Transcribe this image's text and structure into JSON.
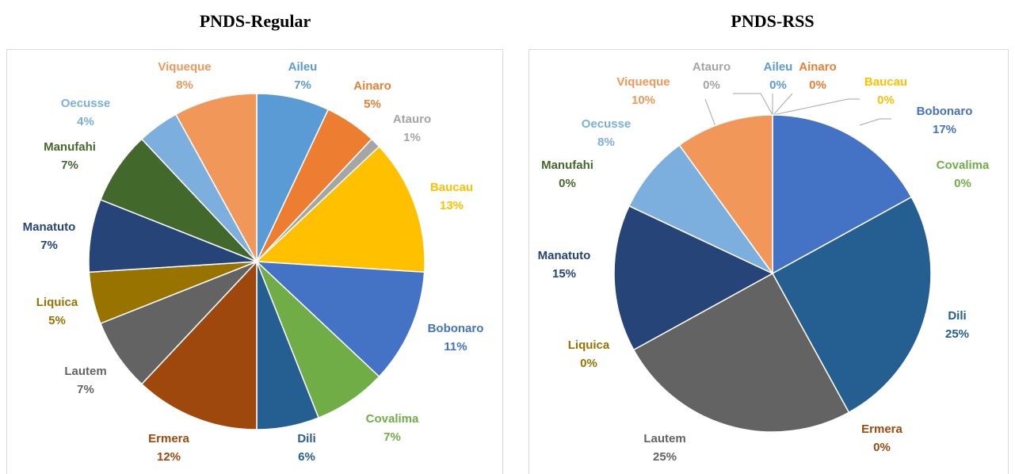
{
  "chart_data": [
    {
      "type": "pie",
      "title": "PNDS-Regular",
      "categories": [
        "Aileu",
        "Ainaro",
        "Atauro",
        "Baucau",
        "Bobonaro",
        "Covalima",
        "Dili",
        "Ermera",
        "Lautem",
        "Liquica",
        "Manatuto",
        "Manufahi",
        "Oecusse",
        "Viqueque"
      ],
      "values": [
        7,
        5,
        1,
        13,
        11,
        7,
        6,
        12,
        7,
        5,
        7,
        7,
        4,
        8
      ],
      "value_labels": [
        "7%",
        "5%",
        "1%",
        "13%",
        "11%",
        "7%",
        "6%",
        "12%",
        "7%",
        "5%",
        "7%",
        "7%",
        "4%",
        "8%"
      ],
      "colors": [
        "#5b9bd5",
        "#ed7d31",
        "#a5a5a5",
        "#ffc000",
        "#4472c4",
        "#70ad47",
        "#255e91",
        "#9e480e",
        "#636363",
        "#997300",
        "#264478",
        "#43682b",
        "#7cafdd",
        "#f1975a"
      ]
    },
    {
      "type": "pie",
      "title": "PNDS-RSS",
      "categories": [
        "Aileu",
        "Ainaro",
        "Atauro",
        "Baucau",
        "Bobonaro",
        "Covalima",
        "Dili",
        "Ermera",
        "Lautem",
        "Liquica",
        "Manatuto",
        "Manufahi",
        "Oecusse",
        "Viqueque"
      ],
      "values": [
        0,
        0,
        0,
        0,
        17,
        0,
        25,
        0,
        25,
        0,
        15,
        0,
        8,
        10
      ],
      "value_labels": [
        "0%",
        "0%",
        "0%",
        "0%",
        "17%",
        "0%",
        "25%",
        "0%",
        "25%",
        "0%",
        "15%",
        "0%",
        "8%",
        "10%"
      ],
      "colors": [
        "#5b9bd5",
        "#ed7d31",
        "#a5a5a5",
        "#ffc000",
        "#4472c4",
        "#70ad47",
        "#255e91",
        "#9e480e",
        "#636363",
        "#997300",
        "#264478",
        "#43682b",
        "#7cafdd",
        "#f1975a"
      ]
    }
  ]
}
